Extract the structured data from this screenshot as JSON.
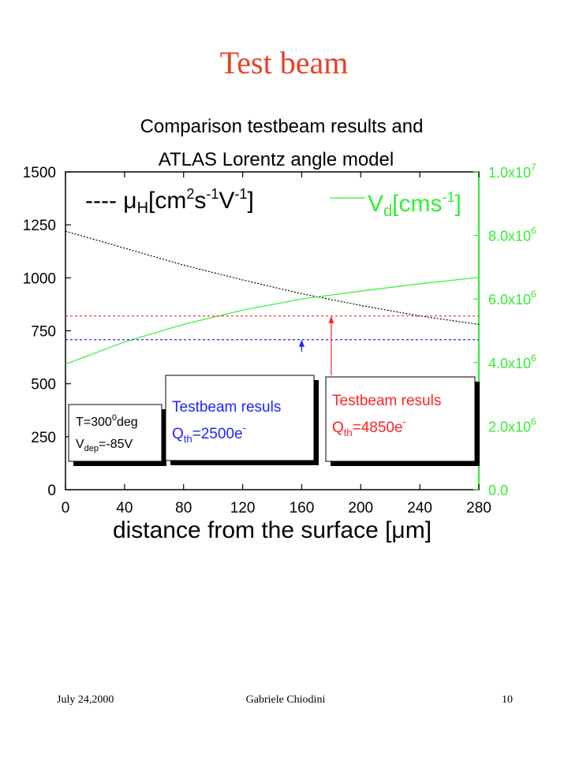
{
  "slide": {
    "title": "Test beam",
    "footer_date": "July 24,2000",
    "footer_author": "Gabriele Chiodini",
    "page_number": "10"
  },
  "chart_data": {
    "type": "line",
    "title_line1": "Comparison testbeam results and",
    "title_line2": "ATLAS Lorentz angle model",
    "xlabel": "distance from the surface [μm]",
    "xlim": [
      0,
      280
    ],
    "xticks": [
      0,
      40,
      80,
      120,
      160,
      200,
      240,
      280
    ],
    "ylim_left": [
      0,
      1500
    ],
    "yticks_left": [
      0,
      250,
      500,
      750,
      1000,
      1250,
      1500
    ],
    "ylim_right": [
      0,
      10000000
    ],
    "yticks_right": [
      {
        "value": 0,
        "label": "0.0",
        "exp": ""
      },
      {
        "value": 2000000,
        "label": "2.0x10",
        "exp": "6"
      },
      {
        "value": 4000000,
        "label": "4.0x10",
        "exp": "6"
      },
      {
        "value": 6000000,
        "label": "6.0x10",
        "exp": "6"
      },
      {
        "value": 8000000,
        "label": "8.0x10",
        "exp": "6"
      },
      {
        "value": 10000000,
        "label": "1.0x10",
        "exp": "7"
      }
    ],
    "series": [
      {
        "legend": "---- μH[cm2s-1V-1]",
        "axis": "left",
        "color": "#000000",
        "dash": true,
        "x": [
          0,
          40,
          80,
          120,
          160,
          200,
          240,
          280
        ],
        "y": [
          1220,
          1140,
          1060,
          990,
          925,
          870,
          820,
          780
        ]
      },
      {
        "legend": "Vd[cms-1]",
        "axis": "right",
        "color": "#33ee33",
        "dash": false,
        "x": [
          0,
          40,
          80,
          120,
          160,
          200,
          240,
          280
        ],
        "y": [
          3950000,
          4650000,
          5200000,
          5650000,
          6000000,
          6250000,
          6480000,
          6680000
        ]
      }
    ],
    "hlines": [
      {
        "axis": "left",
        "y": 820,
        "color": "#ff2222"
      },
      {
        "axis": "left",
        "y": 708,
        "color": "#2222ff"
      }
    ],
    "arrows": [
      {
        "x": 160,
        "y_from": 650,
        "y_to": 708,
        "color": "#2222ff"
      },
      {
        "x": 180,
        "y_from": 540,
        "y_to": 820,
        "color": "#ff2222"
      }
    ],
    "legend_mu": {
      "prefix": "---- ",
      "sym": "μ",
      "sub": "H",
      "t1": "[cm",
      "s1": "2",
      "t2": "s",
      "s2": "-1",
      "t3": "V",
      "s3": "-1",
      "t4": "]"
    },
    "legend_vd": {
      "sym": "V",
      "sub": "d",
      "t1": "[cms",
      "s1": "-1",
      "t2": "]"
    },
    "box_conditions": {
      "line1": "T=300",
      "line1_sup": "0",
      "line1_rest": "deg",
      "line2": "V",
      "line2_sub": "dep",
      "line2_rest": "=-85V"
    },
    "box_blue": {
      "line1": "Testbeam resuls",
      "line2": "Q",
      "line2_sub": "th",
      "line2_rest": "=2500e",
      "line2_sup": "-",
      "color": "#2222ff"
    },
    "box_red": {
      "line1": "Testbeam resuls",
      "line2": "Q",
      "line2_sub": "th",
      "line2_rest": "=4850e",
      "line2_sup": "-",
      "color": "#ff2222"
    },
    "colors": {
      "left_axis": "#000000",
      "right_axis": "#33ee33",
      "title": "#e8402a"
    }
  }
}
